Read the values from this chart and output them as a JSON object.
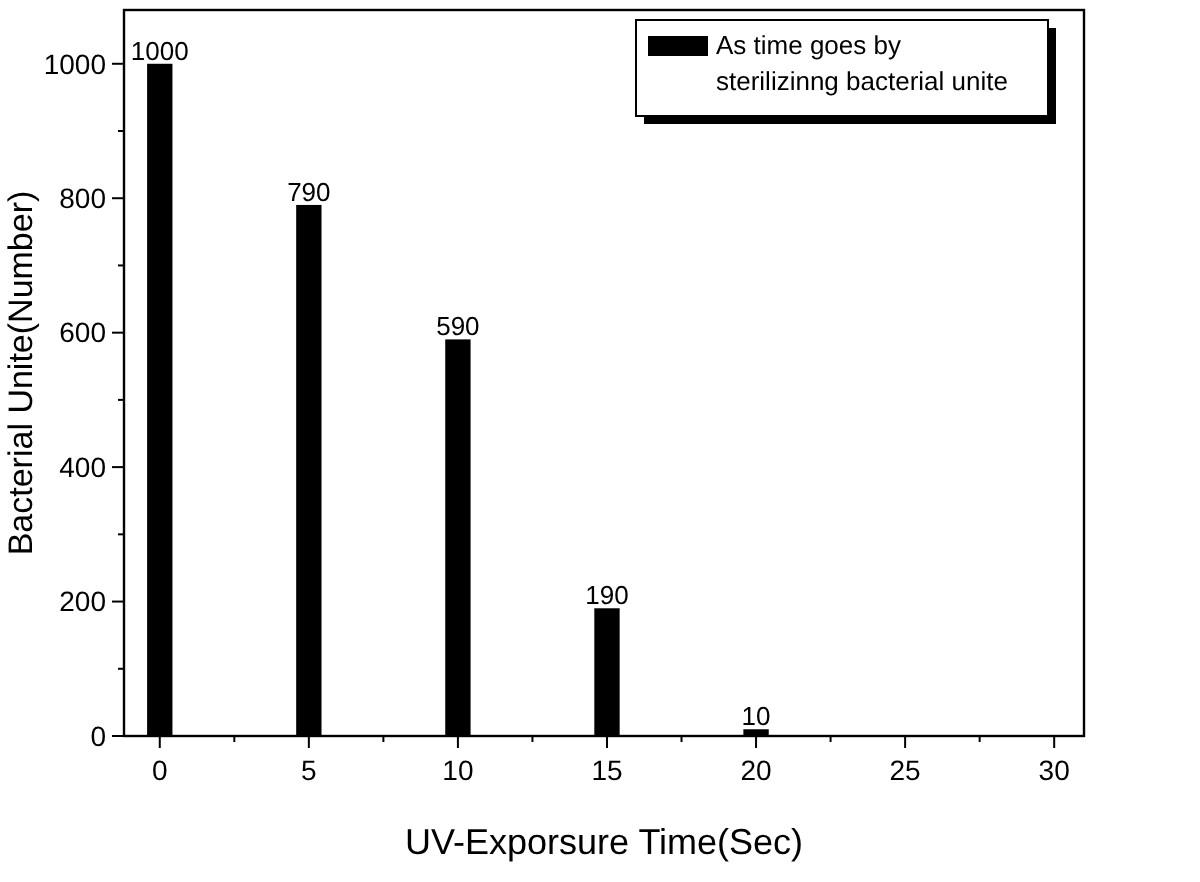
{
  "chart_data": {
    "type": "bar",
    "xlabel": "UV-Exporsure Time(Sec)",
    "ylabel": "Bacterial Unite(Number)",
    "x": [
      0,
      5,
      10,
      15,
      20
    ],
    "series": [
      {
        "name": "As time goes by\nsterilizinng bacterial unite",
        "color": "#000000",
        "values": [
          1000,
          790,
          590,
          190,
          10
        ]
      }
    ],
    "xlim": [
      -1.2,
      31
    ],
    "xticks": [
      0,
      5,
      10,
      15,
      20,
      25,
      30
    ],
    "ylim": [
      0,
      1080
    ],
    "yticks": [
      0,
      200,
      400,
      600,
      800,
      1000
    ],
    "data_labels": true,
    "legend": "top right",
    "grid": false
  }
}
